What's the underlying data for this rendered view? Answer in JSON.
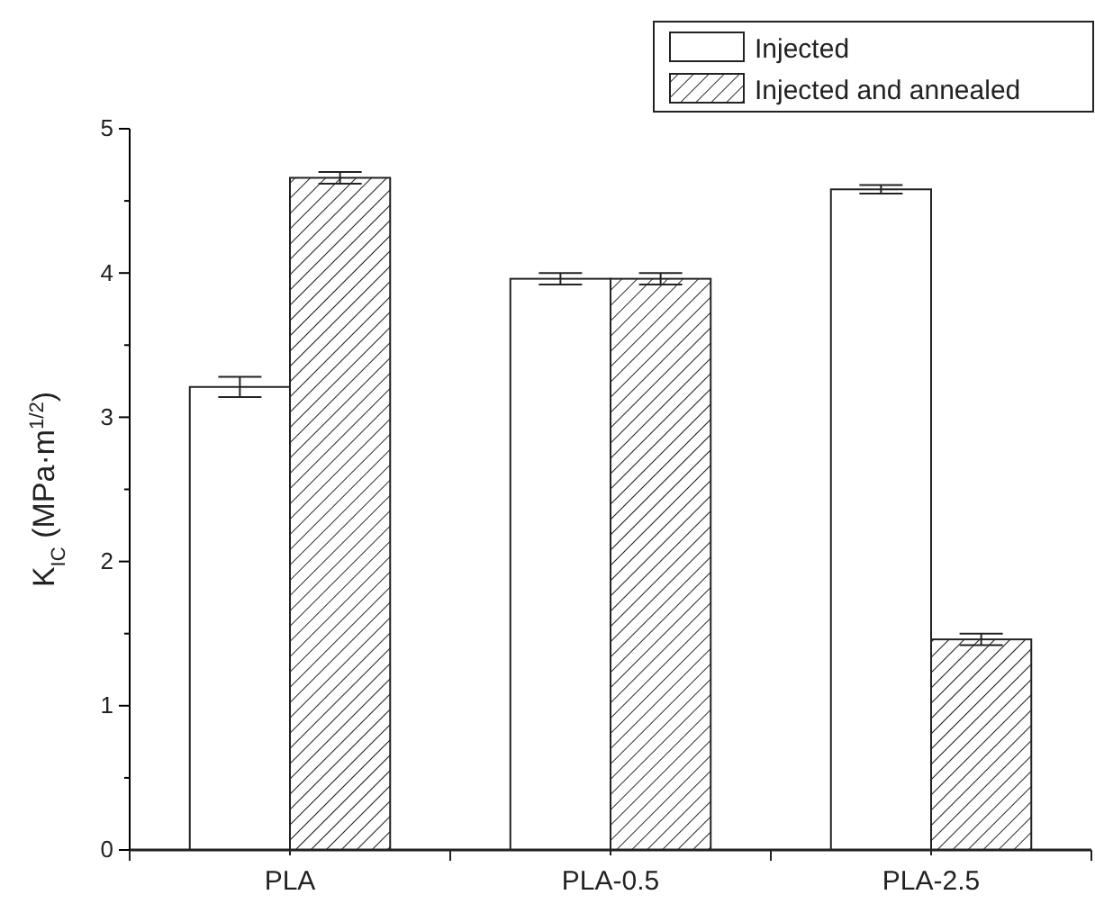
{
  "chart_data": {
    "type": "bar",
    "ylabel": "K$_{IC}$  (MPa·m$^{1/2}$)",
    "categories": [
      "PLA",
      "PLA-0.5",
      "PLA-2.5"
    ],
    "series": [
      {
        "name": "Injected",
        "color": "#222222",
        "values": [
          3.21,
          3.96,
          4.58
        ],
        "errors": [
          0.07,
          0.04,
          0.03
        ]
      },
      {
        "name": "Injected and annealed",
        "color": "#222222",
        "values": [
          4.66,
          3.96,
          1.46
        ],
        "errors": [
          0.04,
          0.04,
          0.04
        ]
      }
    ],
    "ylim": [
      0,
      5
    ],
    "yticks": [
      0,
      {
        "value": 0.5,
        "label": null
      },
      1,
      {
        "value": 1.5,
        "label": null
      },
      2,
      {
        "value": 2.5,
        "label": null
      },
      3,
      {
        "value": 3.5,
        "label": null
      },
      4,
      {
        "value": 4.5,
        "label": null
      },
      5
    ],
    "legend": "top right",
    "grid": false
  }
}
